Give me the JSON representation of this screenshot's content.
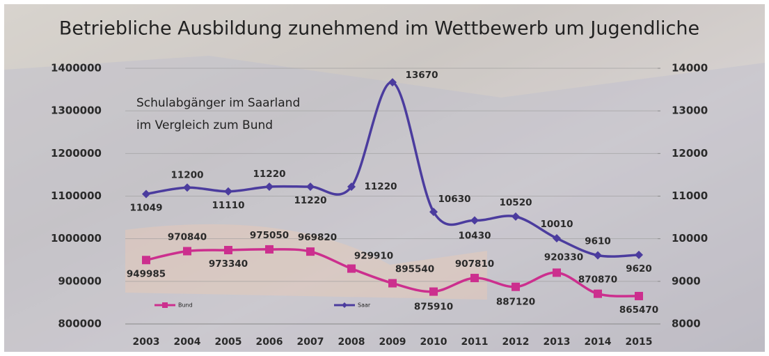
{
  "chart_data": {
    "type": "line",
    "title": "Betriebliche Ausbildung zunehmend im Wettbewerb um Jugendliche",
    "annotation": [
      "Schulabgänger im Saarland",
      "im Vergleich zum Bund"
    ],
    "categories": [
      "2003",
      "2004",
      "2005",
      "2006",
      "2007",
      "2008",
      "2009",
      "2010",
      "2011",
      "2012",
      "2013",
      "2014",
      "2015"
    ],
    "ylim": [
      800000,
      1400000
    ],
    "yticks": [
      800000,
      900000,
      1000000,
      1100000,
      1200000,
      1300000,
      1400000
    ],
    "y2lim": [
      8000,
      14000
    ],
    "y2ticks": [
      8000,
      9000,
      10000,
      11000,
      12000,
      13000,
      14000
    ],
    "grid": true,
    "series": [
      {
        "name": "Bund",
        "color": "#cc2f8e",
        "marker": "square",
        "values": [
          949985,
          970840,
          973340,
          975050,
          969820,
          929910,
          895540,
          875910,
          907810,
          887120,
          920330,
          870870,
          865470
        ]
      },
      {
        "name": "Saar",
        "color": "#4b3c9e",
        "marker": "diamond",
        "axis": "y2",
        "values": [
          11049,
          11200,
          11110,
          11220,
          11220,
          11220,
          13670,
          10630,
          10430,
          10520,
          10010,
          9610,
          9620
        ]
      }
    ]
  }
}
